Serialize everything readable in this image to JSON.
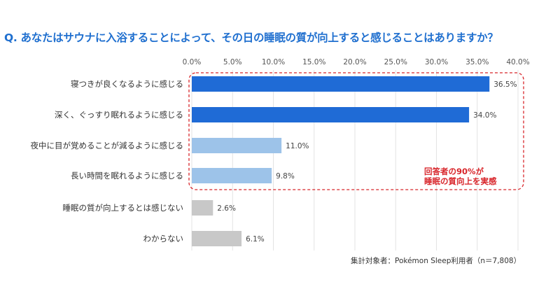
{
  "chart_data": {
    "type": "bar",
    "orientation": "horizontal",
    "title": "Q. あなたはサウナに入浴することによって、その日の睡眠の質が向上すると感じることはありますか？",
    "categories": [
      "寝つきが良くなるように感じる",
      "深く、ぐっすり眠れるように感じる",
      "夜中に目が覚めることが減るように感じる",
      "長い時間を眠れるように感じる",
      "睡眠の質が向上するとは感じない",
      "わからない"
    ],
    "values": [
      36.5,
      34.0,
      11.0,
      9.8,
      2.6,
      6.1
    ],
    "data_labels": [
      "36.5%",
      "34.0%",
      "11.0%",
      "9.8%",
      "2.6%",
      "6.1%"
    ],
    "bar_colors": [
      "#1f6bd6",
      "#1f6bd6",
      "#9dc3e9",
      "#9dc3e9",
      "#c8c8c8",
      "#c8c8c8"
    ],
    "xlim": [
      0,
      40
    ],
    "tick_labels": [
      "0.0%",
      "5.0%",
      "10.0%",
      "15.0%",
      "20.0%",
      "25.0%",
      "30.0%",
      "35.0%",
      "40.0%"
    ],
    "axis_position": "top",
    "grid": true,
    "annotation": {
      "line1": "回答者の90%が",
      "line2": "睡眠の質向上を実感",
      "color": "#d8262b"
    },
    "footnote": "集計対象者：Pokémon Sleep利用者（n＝7,808）"
  }
}
